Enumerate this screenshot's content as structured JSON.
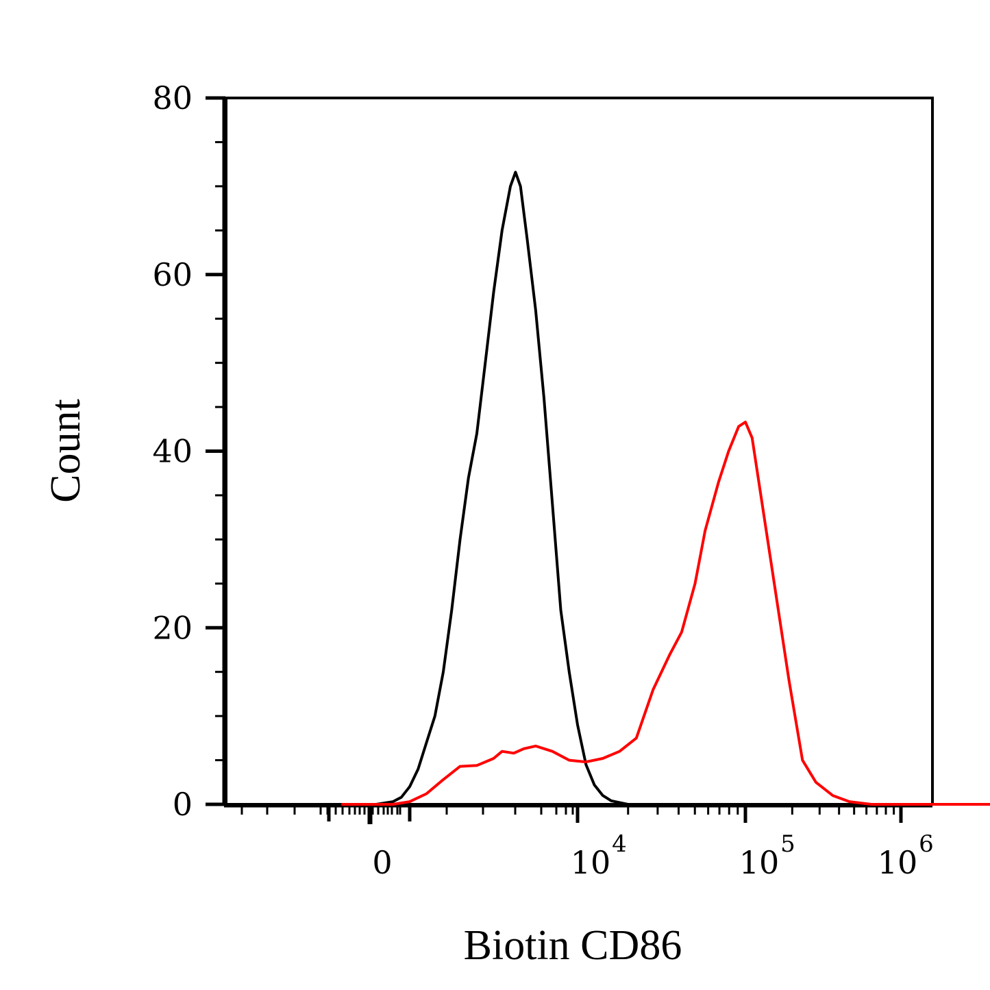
{
  "chart_data": {
    "type": "line",
    "title": "",
    "xlabel": "Biotin CD86",
    "ylabel": "Count",
    "xscale": "biexponential",
    "ylim": [
      0,
      80
    ],
    "y_ticks": [
      {
        "value": 0,
        "label": "0"
      },
      {
        "value": 20,
        "label": "20"
      },
      {
        "value": 40,
        "label": "40"
      },
      {
        "value": 60,
        "label": "60"
      },
      {
        "value": 80,
        "label": "80"
      }
    ],
    "x_ticks": [
      {
        "value": 0,
        "base": "0",
        "exp": ""
      },
      {
        "value": 10000,
        "base": "10",
        "exp": "4"
      },
      {
        "value": 100000,
        "base": "10",
        "exp": "5"
      },
      {
        "value": 1000000,
        "base": "10",
        "exp": "6"
      }
    ],
    "grid": false,
    "legend": "none",
    "series": [
      {
        "color": "#000000",
        "points": [
          [
            -0.4,
            0
          ],
          [
            -0.2,
            0
          ],
          [
            -0.1,
            0.3
          ],
          [
            -0.05,
            0.8
          ],
          [
            0.0,
            2
          ],
          [
            0.05,
            4
          ],
          [
            0.1,
            7
          ],
          [
            0.15,
            10
          ],
          [
            0.2,
            15
          ],
          [
            0.25,
            22
          ],
          [
            0.3,
            30
          ],
          [
            0.35,
            37
          ],
          [
            0.4,
            42
          ],
          [
            0.45,
            50
          ],
          [
            0.5,
            58
          ],
          [
            0.55,
            65
          ],
          [
            0.6,
            70
          ],
          [
            0.63,
            71.6
          ],
          [
            0.66,
            70
          ],
          [
            0.7,
            64
          ],
          [
            0.75,
            56
          ],
          [
            0.8,
            46
          ],
          [
            0.85,
            34
          ],
          [
            0.9,
            22
          ],
          [
            0.95,
            15
          ],
          [
            1.0,
            9
          ],
          [
            1.05,
            4.5
          ],
          [
            1.1,
            2.2
          ],
          [
            1.15,
            1
          ],
          [
            1.2,
            0.4
          ],
          [
            1.3,
            0
          ],
          [
            4.73,
            0
          ]
        ]
      },
      {
        "color": "#ff0000",
        "points": [
          [
            -0.4,
            0
          ],
          [
            -0.1,
            0
          ],
          [
            0.0,
            0.3
          ],
          [
            0.1,
            1.2
          ],
          [
            0.2,
            2.8
          ],
          [
            0.3,
            4.3
          ],
          [
            0.4,
            4.4
          ],
          [
            0.5,
            5.2
          ],
          [
            0.55,
            6
          ],
          [
            0.62,
            5.8
          ],
          [
            0.68,
            6.3
          ],
          [
            0.75,
            6.6
          ],
          [
            0.85,
            6
          ],
          [
            0.95,
            5
          ],
          [
            1.05,
            4.8
          ],
          [
            1.15,
            5.2
          ],
          [
            1.25,
            6
          ],
          [
            1.35,
            7.5
          ],
          [
            1.45,
            13
          ],
          [
            1.55,
            17
          ],
          [
            1.62,
            19.5
          ],
          [
            1.7,
            25
          ],
          [
            1.76,
            31
          ],
          [
            1.84,
            36.5
          ],
          [
            1.9,
            40
          ],
          [
            1.96,
            42.8
          ],
          [
            2.0,
            43.3
          ],
          [
            2.04,
            41.5
          ],
          [
            2.1,
            34
          ],
          [
            2.18,
            24
          ],
          [
            2.26,
            14
          ],
          [
            2.34,
            5
          ],
          [
            2.42,
            2.5
          ],
          [
            2.52,
            1
          ],
          [
            2.62,
            0.3
          ],
          [
            2.75,
            0
          ],
          [
            4.73,
            0
          ]
        ]
      }
    ]
  }
}
